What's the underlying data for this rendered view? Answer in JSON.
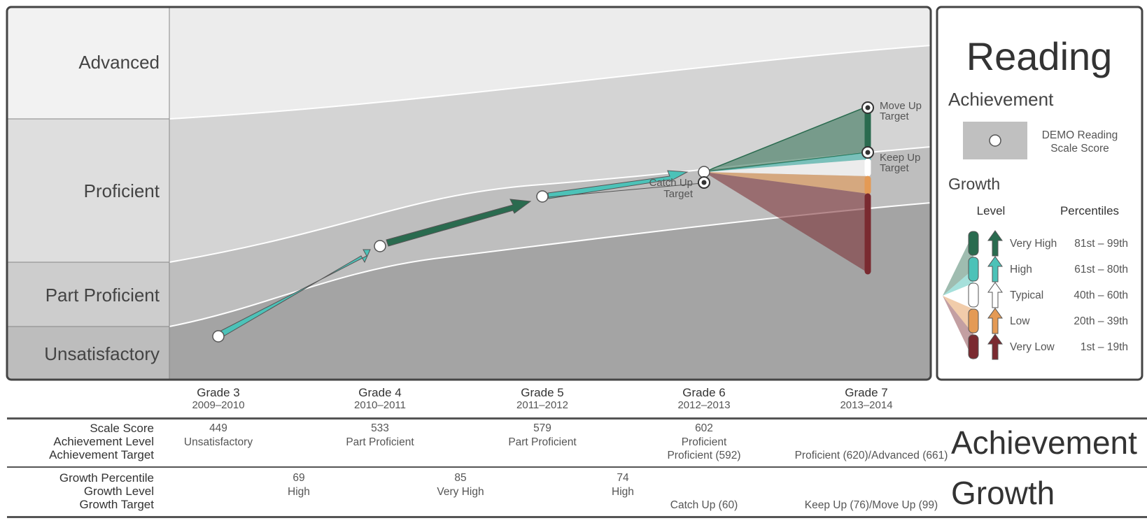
{
  "subject": "Reading",
  "achievement_levels": [
    "Advanced",
    "Proficient",
    "Part Proficient",
    "Unsatisfactory"
  ],
  "grades": [
    {
      "grade": "Grade 3",
      "years": "2009–2010"
    },
    {
      "grade": "Grade 4",
      "years": "2010–2011"
    },
    {
      "grade": "Grade 5",
      "years": "2011–2012"
    },
    {
      "grade": "Grade 6",
      "years": "2012–2013"
    },
    {
      "grade": "Grade 7",
      "years": "2013–2014"
    }
  ],
  "chart_data": {
    "type": "line",
    "x": [
      "Grade 3",
      "Grade 4",
      "Grade 5",
      "Grade 6"
    ],
    "scale_scores": [
      449,
      533,
      579,
      602
    ],
    "growth_levels_of_segments": [
      "High",
      "Very High",
      "High"
    ],
    "catch_up_target_score": 592,
    "keep_up_target_score": 620,
    "move_up_target_score": 661,
    "fan_colors": {
      "very_high": "#2a6b4f",
      "high": "#4cc2b8",
      "typical": "#ffffff",
      "low": "#e49a55",
      "very_low": "#7a2a30"
    },
    "band_colors": {
      "advanced": "#ececec",
      "proficient": "#d4d4d4",
      "part_proficient": "#bebebe",
      "unsatisfactory": "#a4a4a4"
    }
  },
  "target_labels": {
    "move_up": [
      "Move Up",
      "Target"
    ],
    "keep_up": [
      "Keep Up",
      "Target"
    ],
    "catch_up": [
      "Catch Up",
      "Target"
    ]
  },
  "legend": {
    "title": "Reading",
    "achievement_heading": "Achievement",
    "score_label": [
      "DEMO Reading",
      "Scale Score"
    ],
    "growth_heading": "Growth",
    "level_heading": "Level",
    "percentiles_heading": "Percentiles",
    "levels": [
      {
        "name": "Very High",
        "range": "81st  – 99th",
        "color": "#2a6b4f"
      },
      {
        "name": "High",
        "range": "61st – 80th",
        "color": "#4cc2b8"
      },
      {
        "name": "Typical",
        "range": "40th – 60th",
        "color": "#ffffff"
      },
      {
        "name": "Low",
        "range": "20th – 39th",
        "color": "#e49a55"
      },
      {
        "name": "Very Low",
        "range": "1st – 19th",
        "color": "#7a2a30"
      }
    ]
  },
  "table": {
    "achievement_word": "Achievement",
    "growth_word": "Growth",
    "achievement_row_labels": [
      "Scale Score",
      "Achievement Level",
      "Achievement Target"
    ],
    "growth_row_labels": [
      "Growth Percentile",
      "Growth Level",
      "Growth Target"
    ],
    "achievement": [
      {
        "score": "449",
        "level": "Unsatisfactory",
        "target": ""
      },
      {
        "score": "533",
        "level": "Part Proficient",
        "target": ""
      },
      {
        "score": "579",
        "level": "Part Proficient",
        "target": ""
      },
      {
        "score": "602",
        "level": "Proficient",
        "target": "Proficient (592)"
      },
      {
        "score": "",
        "level": "",
        "target": "Proficient (620)/Advanced (661)"
      }
    ],
    "growth": [
      {
        "percentile": "69",
        "level": "High",
        "target": ""
      },
      {
        "percentile": "85",
        "level": "Very High",
        "target": ""
      },
      {
        "percentile": "74",
        "level": "High",
        "target": ""
      },
      {
        "percentile": "",
        "level": "",
        "target": "Catch Up (60)"
      },
      {
        "percentile": "",
        "level": "",
        "target": "Keep Up (76)/Move Up (99)"
      }
    ]
  }
}
